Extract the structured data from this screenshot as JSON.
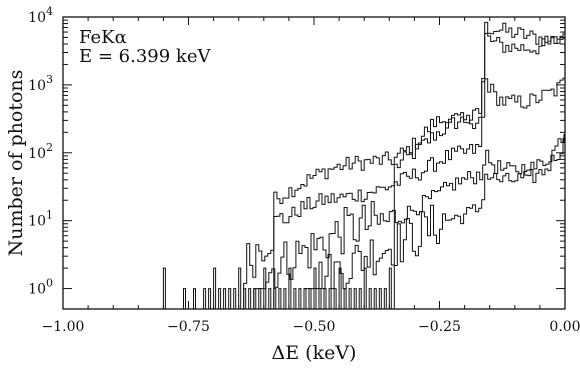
{
  "chart_data": {
    "type": "line",
    "subtype": "step-histogram",
    "title": "",
    "xlabel": "ΔE (keV)",
    "ylabel": "Number of photons",
    "xlim": [
      -1.0,
      0.0
    ],
    "ylim": [
      0.5,
      10000
    ],
    "yscale": "log",
    "grid": false,
    "legend": "none",
    "annotations": [
      "FeKα",
      "E = 6.399 keV"
    ],
    "x_ticks": [
      {
        "value": -1.0,
        "label": "−1.00"
      },
      {
        "value": -0.75,
        "label": "−0.75"
      },
      {
        "value": -0.5,
        "label": "−0.50"
      },
      {
        "value": -0.25,
        "label": "−0.25"
      },
      {
        "value": 0.0,
        "label": "0.00"
      }
    ],
    "y_ticks": [
      {
        "value": 1,
        "base": "10",
        "exp": "0"
      },
      {
        "value": 10,
        "base": "10",
        "exp": "1"
      },
      {
        "value": 100,
        "base": "10",
        "exp": "2"
      },
      {
        "value": 1000,
        "base": "10",
        "exp": "3"
      },
      {
        "value": 10000,
        "base": "10",
        "exp": "4"
      }
    ],
    "bin_width": 0.006,
    "series": [
      {
        "x": [
          -0.34,
          -0.3,
          -0.26,
          -0.22,
          -0.2,
          -0.18,
          -0.165,
          -0.16,
          -0.14,
          -0.12,
          -0.1,
          -0.08,
          -0.06,
          -0.04,
          -0.02,
          0.0
        ],
        "y": [
          60,
          100,
          180,
          280,
          300,
          340,
          420,
          7000,
          6800,
          6200,
          5800,
          5400,
          5000,
          4700,
          4600,
          6000
        ]
      },
      {
        "x": [
          -0.58,
          -0.54,
          -0.5,
          -0.46,
          -0.42,
          -0.38,
          -0.34,
          -0.3,
          -0.26,
          -0.22,
          -0.2,
          -0.18,
          -0.165,
          -0.16,
          -0.14,
          -0.12,
          -0.1,
          -0.08,
          -0.06,
          -0.04,
          -0.02,
          0.0
        ],
        "y": [
          20,
          30,
          45,
          60,
          70,
          75,
          80,
          130,
          280,
          320,
          290,
          300,
          340,
          5400,
          4100,
          3700,
          3600,
          3500,
          3500,
          3700,
          4300,
          5000
        ]
      },
      {
        "x": [
          -0.64,
          -0.6,
          -0.56,
          -0.52,
          -0.48,
          -0.44,
          -0.4,
          -0.36,
          -0.32,
          -0.28,
          -0.24,
          -0.2,
          -0.18,
          -0.165,
          -0.16,
          -0.14,
          -0.12,
          -0.1,
          -0.08,
          -0.06,
          -0.04,
          -0.02,
          0.0
        ],
        "y": [
          2,
          5,
          10,
          16,
          20,
          22,
          25,
          30,
          40,
          55,
          85,
          100,
          110,
          120,
          1300,
          700,
          560,
          550,
          560,
          600,
          700,
          800,
          1100
        ]
      },
      {
        "x": [
          -0.62,
          -0.58,
          -0.54,
          -0.5,
          -0.46,
          -0.42,
          -0.38,
          -0.34,
          -0.3,
          -0.26,
          -0.22,
          -0.2,
          -0.18,
          -0.165,
          -0.16,
          -0.14,
          -0.12,
          -0.1,
          -0.08,
          -0.06,
          -0.04,
          -0.02,
          0.0
        ],
        "y": [
          1,
          2,
          3,
          4,
          6,
          8,
          9,
          10,
          15,
          22,
          35,
          40,
          45,
          50,
          90,
          65,
          55,
          55,
          60,
          60,
          75,
          110,
          210
        ]
      },
      {
        "x": [
          -0.52,
          -0.48,
          -0.44,
          -0.4,
          -0.36,
          -0.32,
          -0.28,
          -0.24,
          -0.2,
          -0.18,
          -0.165,
          -0.16,
          -0.14,
          -0.12,
          -0.1,
          -0.08,
          -0.06,
          -0.04,
          -0.02,
          0.0
        ],
        "y": [
          1,
          1.5,
          2,
          3,
          4,
          5,
          7,
          10,
          12,
          14,
          16,
          48,
          42,
          38,
          40,
          42,
          45,
          55,
          85,
          140
        ]
      }
    ]
  }
}
